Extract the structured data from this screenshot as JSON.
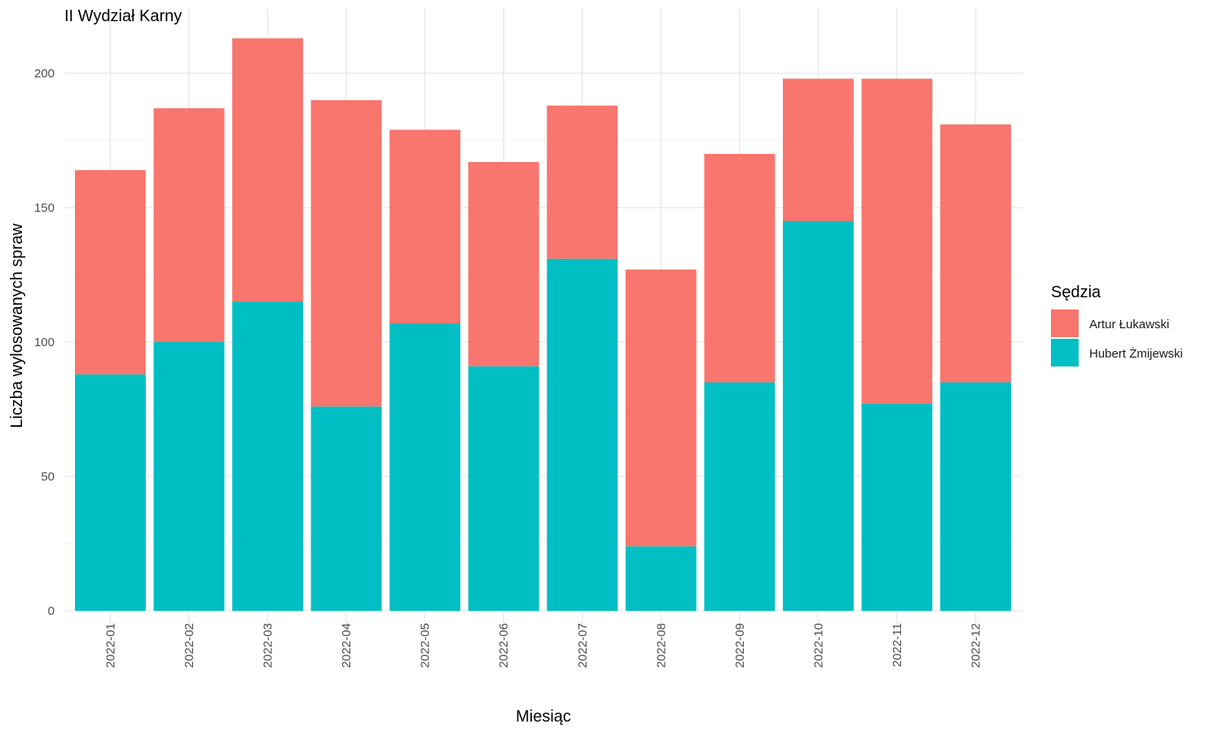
{
  "chart_data": {
    "type": "bar",
    "stacked": true,
    "title": "II Wydział Karny",
    "xlabel": "Miesiąc",
    "ylabel": "Liczba wylosowanych spraw",
    "ylim": [
      0,
      220
    ],
    "yticks": [
      0,
      50,
      100,
      150,
      200
    ],
    "grid": true,
    "legend": {
      "title": "Sędzia",
      "position": "right"
    },
    "categories": [
      "2022-01",
      "2022-02",
      "2022-03",
      "2022-04",
      "2022-05",
      "2022-06",
      "2022-07",
      "2022-08",
      "2022-09",
      "2022-10",
      "2022-11",
      "2022-12"
    ],
    "series": [
      {
        "name": "Hubert Żmijewski",
        "color": "#00BFC4",
        "values": [
          88,
          100,
          115,
          76,
          107,
          91,
          131,
          24,
          85,
          145,
          77,
          85
        ]
      },
      {
        "name": "Artur Łukawski",
        "color": "#F8766D",
        "values": [
          76,
          87,
          98,
          114,
          72,
          76,
          57,
          103,
          85,
          53,
          121,
          96
        ]
      }
    ],
    "legend_order": [
      "Artur Łukawski",
      "Hubert Żmijewski"
    ]
  }
}
